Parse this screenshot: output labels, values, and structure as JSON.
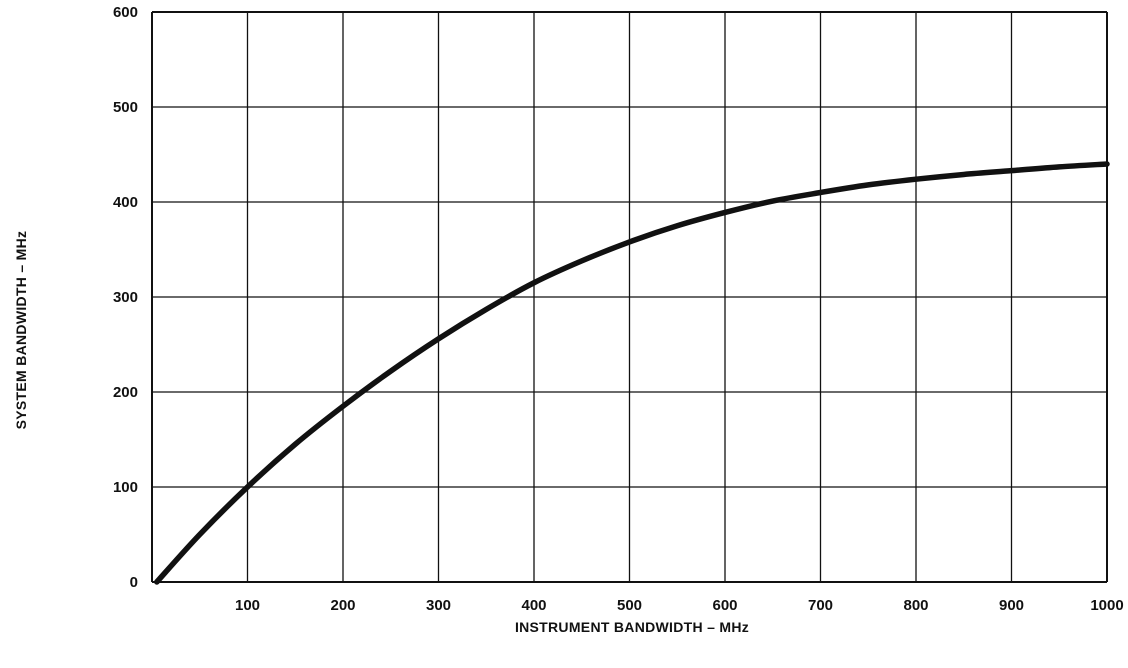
{
  "chart_data": {
    "type": "line",
    "title": "",
    "xlabel": "INSTRUMENT BANDWIDTH – MHz",
    "ylabel": "SYSTEM BANDWIDTH – MHz",
    "xlim": [
      0,
      1000
    ],
    "ylim": [
      0,
      600
    ],
    "x_ticks": [
      100,
      200,
      300,
      400,
      500,
      600,
      700,
      800,
      900,
      1000
    ],
    "y_ticks": [
      0,
      100,
      200,
      300,
      400,
      500,
      600
    ],
    "grid": true,
    "legend": "none",
    "series": [
      {
        "x": [
          5,
          50,
          100,
          150,
          200,
          250,
          300,
          350,
          400,
          450,
          500,
          550,
          600,
          650,
          700,
          750,
          800,
          850,
          900,
          950,
          1000
        ],
        "y": [
          0,
          50,
          100,
          145,
          185,
          222,
          256,
          287,
          315,
          338,
          358,
          375,
          389,
          401,
          410,
          418,
          424,
          429,
          433,
          437,
          440
        ]
      }
    ],
    "colors": {
      "line": "#111111",
      "grid": "#111111",
      "background": "#ffffff"
    }
  }
}
